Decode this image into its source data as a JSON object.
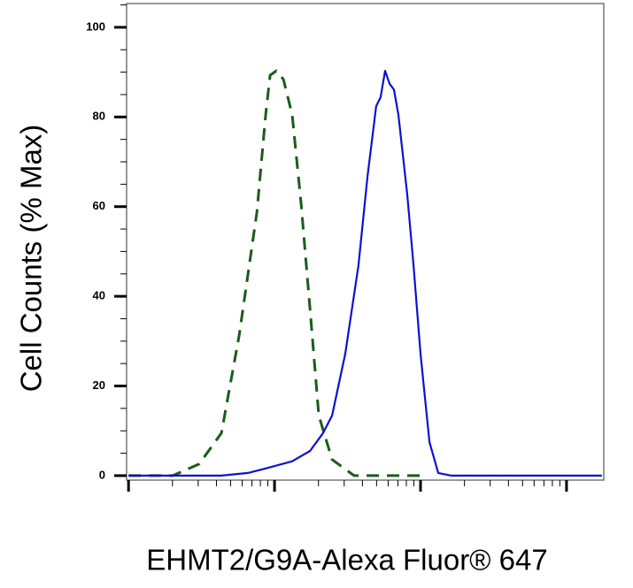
{
  "chart_data": {
    "type": "line",
    "x_label": "EHMT2/G9A-Alexa Fluor® 647",
    "y_label": "Cell Counts (% Max)",
    "xscale": "log",
    "xlim": [
      9.7,
      18000
    ],
    "ylim": [
      -1,
      105.3
    ],
    "xticks": [
      10,
      100,
      1000,
      10000
    ],
    "xminorticks": [
      20,
      30,
      40,
      50,
      60,
      70,
      80,
      90,
      200,
      300,
      400,
      500,
      600,
      700,
      800,
      900,
      2000,
      3000,
      4000,
      5000,
      6000,
      7000,
      8000,
      9000
    ],
    "yticks": [
      0,
      20,
      40,
      60,
      80,
      100
    ],
    "yminorticks": [
      5,
      10,
      15,
      25,
      30,
      35,
      45,
      50,
      55,
      65,
      70,
      75,
      85,
      90,
      95,
      105
    ],
    "series": [
      {
        "color": "#1a5c1a",
        "dashed": true,
        "x": [
          10,
          20.1,
          30.5,
          43.3,
          57.2,
          75.7,
          87.0,
          93.3,
          102.8,
          115,
          132,
          152,
          175,
          201,
          248,
          351,
          464,
          705,
          1072
        ],
        "values": [
          0,
          0,
          2.6,
          9.5,
          31.2,
          58.8,
          80.5,
          89.3,
          90.3,
          88.4,
          80.5,
          60.7,
          37.1,
          13.4,
          3.6,
          0,
          0,
          0,
          0
        ]
      },
      {
        "color": "#1010d0",
        "dashed": false,
        "x": [
          10,
          43.3,
          65.8,
          87.0,
          132,
          175,
          215,
          248,
          305,
          376,
          433,
          497,
          533,
          572,
          614,
          658,
          705,
          811,
          895,
          1000,
          1072,
          1151,
          1322,
          1629,
          17460
        ],
        "values": [
          0,
          0,
          0.6,
          1.6,
          3.2,
          5.5,
          9.5,
          13.4,
          27.2,
          46.9,
          66.7,
          82.4,
          84.4,
          90.3,
          87.4,
          86.1,
          80.5,
          62.7,
          46.9,
          27.2,
          17.4,
          7.5,
          0.6,
          0,
          0
        ]
      }
    ]
  }
}
